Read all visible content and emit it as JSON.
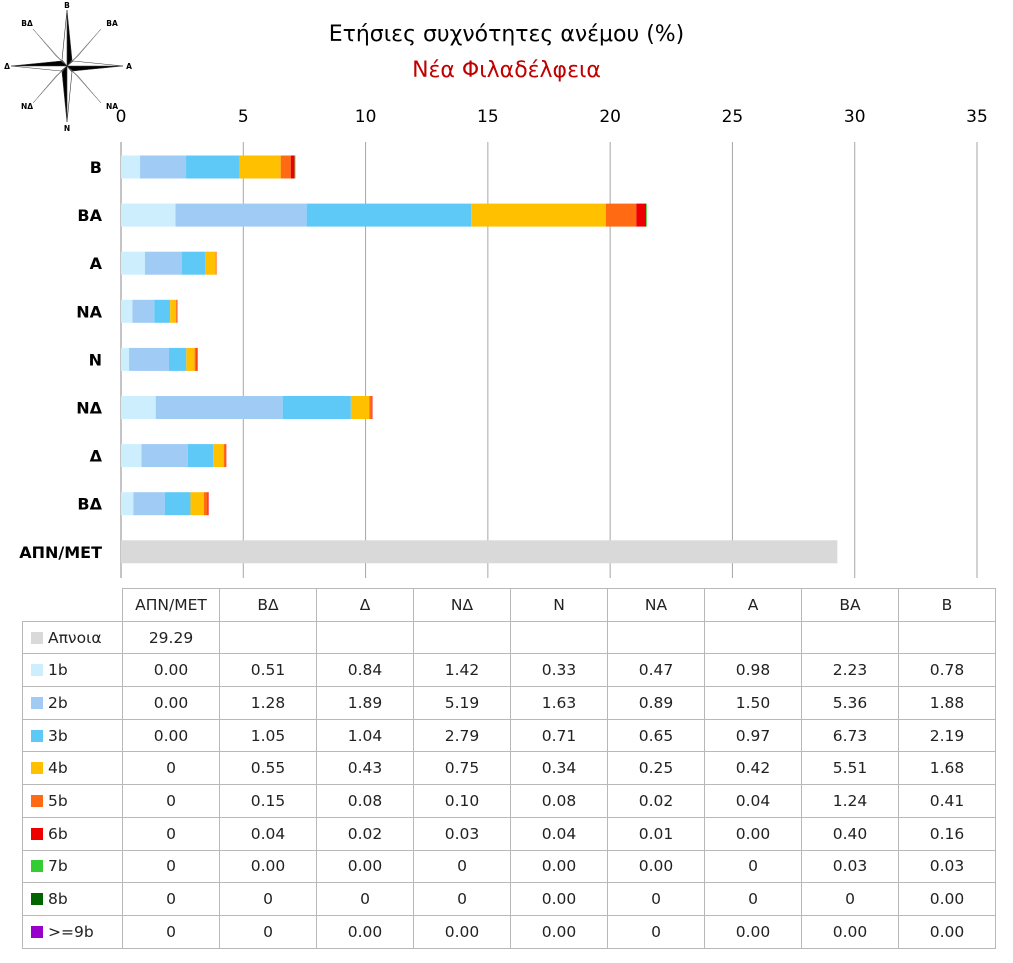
{
  "title": "Ετήσιες συχνότητες ανέμου (%)",
  "subtitle": "Νέα Φιλαδέλφεια",
  "compass": {
    "icon": "compass-rose-icon",
    "labels": {
      "n": "Β",
      "ne": "ΒΑ",
      "e": "Α",
      "se": "ΝΑ",
      "s": "Ν",
      "sw": "ΝΔ",
      "w": "Δ",
      "nw": "ΒΔ"
    }
  },
  "chart_data": {
    "type": "bar",
    "orientation": "horizontal",
    "stacked": true,
    "title": "Ετήσιες συχνότητες ανέμου (%)",
    "subtitle": "Νέα Φιλαδέλφεια",
    "categories": [
      "ΑΠΝ/ΜΕΤ",
      "ΒΔ",
      "Δ",
      "ΝΔ",
      "Ν",
      "ΝΑ",
      "Α",
      "ΒΑ",
      "Β"
    ],
    "category_order_top_to_bottom": [
      "Β",
      "ΒΑ",
      "Α",
      "ΝΑ",
      "Ν",
      "ΝΔ",
      "Δ",
      "ΒΔ",
      "ΑΠΝ/ΜΕΤ"
    ],
    "xlim": [
      0,
      35
    ],
    "xticks": [
      0,
      5,
      10,
      15,
      20,
      25,
      30,
      35
    ],
    "xaxis_position": "top",
    "grid": true,
    "legend": "data-table-below",
    "series": [
      {
        "name": "Απνοια",
        "color": "#d9d9d9",
        "labels": [
          "29.29",
          "",
          "",
          "",
          "",
          "",
          "",
          "",
          ""
        ],
        "values": [
          29.29,
          0,
          0,
          0,
          0,
          0,
          0,
          0,
          0
        ]
      },
      {
        "name": "1b",
        "color": "#cdeefc",
        "labels": [
          "0.00",
          "0.51",
          "0.84",
          "1.42",
          "0.33",
          "0.47",
          "0.98",
          "2.23",
          "0.78"
        ],
        "values": [
          0,
          0.51,
          0.84,
          1.42,
          0.33,
          0.47,
          0.98,
          2.23,
          0.78
        ]
      },
      {
        "name": "2b",
        "color": "#9fcbf5",
        "labels": [
          "0.00",
          "1.28",
          "1.89",
          "5.19",
          "1.63",
          "0.89",
          "1.50",
          "5.36",
          "1.88"
        ],
        "values": [
          0,
          1.28,
          1.89,
          5.19,
          1.63,
          0.89,
          1.5,
          5.36,
          1.88
        ]
      },
      {
        "name": "3b",
        "color": "#5ec8f7",
        "labels": [
          "0.00",
          "1.05",
          "1.04",
          "2.79",
          "0.71",
          "0.65",
          "0.97",
          "6.73",
          "2.19"
        ],
        "values": [
          0,
          1.05,
          1.04,
          2.79,
          0.71,
          0.65,
          0.97,
          6.73,
          2.19
        ]
      },
      {
        "name": "4b",
        "color": "#ffc000",
        "labels": [
          "0",
          "0.55",
          "0.43",
          "0.75",
          "0.34",
          "0.25",
          "0.42",
          "5.51",
          "1.68"
        ],
        "values": [
          0,
          0.55,
          0.43,
          0.75,
          0.34,
          0.25,
          0.42,
          5.51,
          1.68
        ]
      },
      {
        "name": "5b",
        "color": "#ff6a13",
        "labels": [
          "0",
          "0.15",
          "0.08",
          "0.10",
          "0.08",
          "0.02",
          "0.04",
          "1.24",
          "0.41"
        ],
        "values": [
          0,
          0.15,
          0.08,
          0.1,
          0.08,
          0.02,
          0.04,
          1.24,
          0.41
        ]
      },
      {
        "name": "6b",
        "color": "#ee0000",
        "labels": [
          "0",
          "0.04",
          "0.02",
          "0.03",
          "0.04",
          "0.01",
          "0.00",
          "0.40",
          "0.16"
        ],
        "values": [
          0,
          0.04,
          0.02,
          0.03,
          0.04,
          0.01,
          0,
          0.4,
          0.16
        ]
      },
      {
        "name": "7b",
        "color": "#33cc33",
        "labels": [
          "0",
          "0.00",
          "0.00",
          "0",
          "0.00",
          "0.00",
          "0",
          "0.03",
          "0.03"
        ],
        "values": [
          0,
          0,
          0,
          0,
          0,
          0,
          0,
          0.03,
          0.03
        ]
      },
      {
        "name": "8b",
        "color": "#006400",
        "labels": [
          "0",
          "0",
          "0",
          "0",
          "0.00",
          "0",
          "0",
          "0",
          "0.00"
        ],
        "values": [
          0,
          0,
          0,
          0,
          0,
          0,
          0,
          0,
          0
        ]
      },
      {
        "name": ">=9b",
        "color": "#9900cc",
        "labels": [
          "0",
          "0",
          "0.00",
          "0.00",
          "0.00",
          "0",
          "0.00",
          "0.00",
          "0.00"
        ],
        "values": [
          0,
          0,
          0,
          0,
          0,
          0,
          0,
          0,
          0
        ]
      }
    ]
  }
}
